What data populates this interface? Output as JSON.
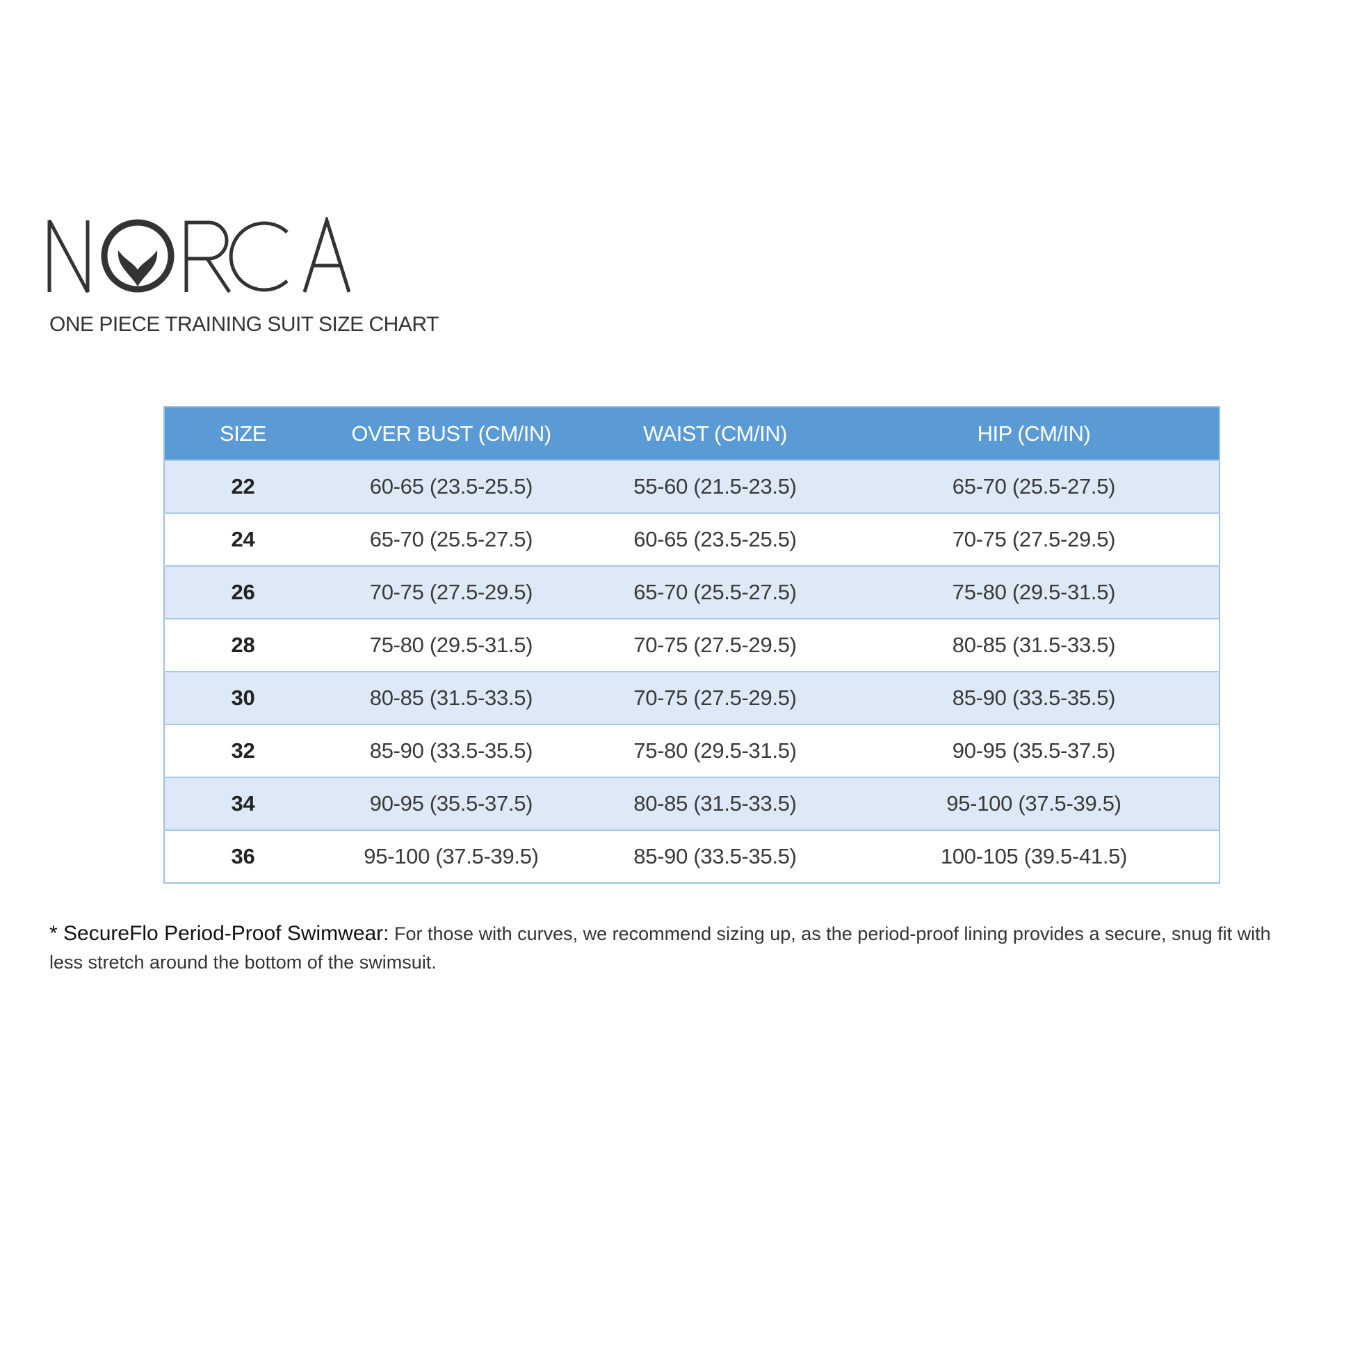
{
  "brand": {
    "logo_text": "NORCA",
    "subtitle": "ONE PIECE TRAINING SUIT SIZE CHART"
  },
  "table": {
    "headers": [
      "SIZE",
      "OVER BUST (CM/IN)",
      "WAIST (CM/IN)",
      "HIP (CM/IN)"
    ],
    "rows": [
      [
        "22",
        "60-65 (23.5-25.5)",
        "55-60 (21.5-23.5)",
        "65-70 (25.5-27.5)"
      ],
      [
        "24",
        "65-70 (25.5-27.5)",
        "60-65 (23.5-25.5)",
        "70-75 (27.5-29.5)"
      ],
      [
        "26",
        "70-75 (27.5-29.5)",
        "65-70 (25.5-27.5)",
        "75-80 (29.5-31.5)"
      ],
      [
        "28",
        "75-80 (29.5-31.5)",
        "70-75 (27.5-29.5)",
        "80-85 (31.5-33.5)"
      ],
      [
        "30",
        "80-85 (31.5-33.5)",
        "70-75 (27.5-29.5)",
        "85-90 (33.5-35.5)"
      ],
      [
        "32",
        "85-90 (33.5-35.5)",
        "75-80 (29.5-31.5)",
        "90-95 (35.5-37.5)"
      ],
      [
        "34",
        "90-95 (35.5-37.5)",
        "80-85 (31.5-33.5)",
        "95-100 (37.5-39.5)"
      ],
      [
        "36",
        "95-100 (37.5-39.5)",
        "85-90 (33.5-35.5)",
        "100-105 (39.5-41.5)"
      ]
    ],
    "header_color": "#5b9bd5",
    "alt_row_color": "#dde9f6"
  },
  "footnote": {
    "label": "* SecureFlo Period-Proof Swimwear:",
    "text": " For those with curves, we recommend sizing up, as the period-proof lining provides a secure, snug fit with less stretch around the bottom of the swimsuit."
  }
}
